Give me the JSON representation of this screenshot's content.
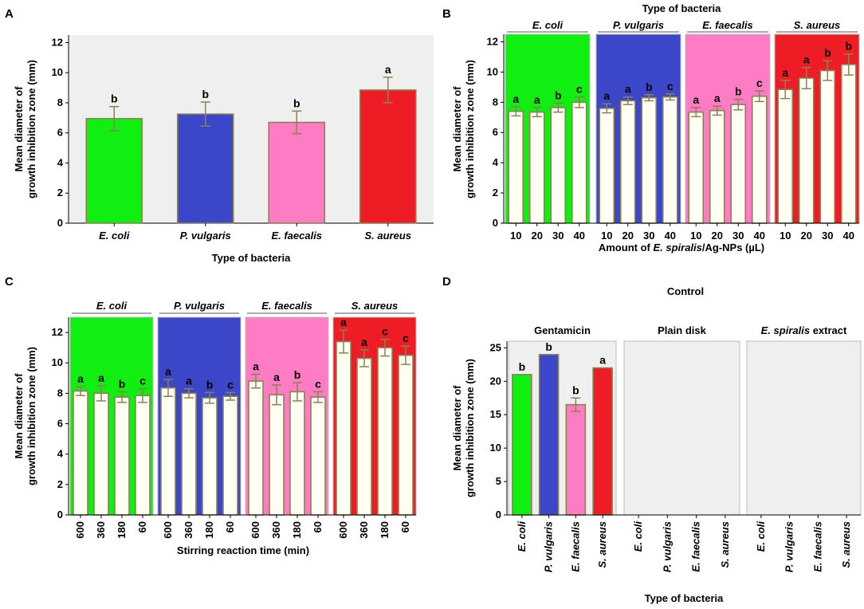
{
  "figure": {
    "colors": {
      "green": "#11ee11",
      "blue": "#3c46c8",
      "pink": "#fd7cc3",
      "red": "#ee1c25",
      "plot_bg": "#efefef",
      "bar_white": "#fffff4",
      "bar_edge": "#8b8152",
      "err": "#8b8152"
    }
  },
  "chart_data": [
    {
      "panel": "A",
      "type": "bar",
      "title": "",
      "xlabel": "Type of bacteria",
      "ylabel": [
        "Mean diameter of",
        "growth inhibition zone (mm)"
      ],
      "ylim": [
        0,
        12.5
      ],
      "yticks": [
        "0",
        "2",
        "4",
        "6",
        "8",
        "10",
        "12"
      ],
      "categories": [
        "E. coli",
        "P. vulgaris",
        "E. faecalis",
        "S. aureus"
      ],
      "values": [
        6.95,
        7.25,
        6.7,
        8.85
      ],
      "errors": [
        0.8,
        0.8,
        0.75,
        0.85
      ],
      "letters": [
        "b",
        "b",
        "b",
        "a"
      ],
      "bar_colors": [
        "green",
        "blue",
        "pink",
        "red"
      ]
    },
    {
      "panel": "B",
      "type": "bar",
      "title": "Type of bacteria",
      "xlabel_parts": [
        {
          "t": "Amount of ",
          "i": false
        },
        {
          "t": "E. spiralis",
          "i": true
        },
        {
          "t": "/Ag-NPs (µL)",
          "i": false
        }
      ],
      "ylabel": [
        "Mean diameter of",
        "growth inhibition zone (mm)"
      ],
      "ylim": [
        0,
        12.5
      ],
      "yticks": [
        "0",
        "2",
        "4",
        "6",
        "8",
        "10",
        "12"
      ],
      "facets": [
        {
          "name": "E. coli",
          "color": "green",
          "categories": [
            "10",
            "20",
            "30",
            "40"
          ],
          "values": [
            7.4,
            7.35,
            7.65,
            8.0
          ],
          "errors": [
            0.3,
            0.3,
            0.3,
            0.35
          ],
          "letters": [
            "a",
            "a",
            "b",
            "c"
          ]
        },
        {
          "name": "P. vulgaris",
          "color": "blue",
          "categories": [
            "10",
            "20",
            "30",
            "40"
          ],
          "values": [
            7.6,
            8.1,
            8.3,
            8.35
          ],
          "errors": [
            0.3,
            0.25,
            0.2,
            0.2
          ],
          "letters": [
            "a",
            "a",
            "b",
            "c"
          ]
        },
        {
          "name": "E. faecalis",
          "color": "pink",
          "categories": [
            "10",
            "20",
            "30",
            "40"
          ],
          "values": [
            7.35,
            7.45,
            7.85,
            8.4
          ],
          "errors": [
            0.3,
            0.3,
            0.35,
            0.35
          ],
          "letters": [
            "a",
            "a",
            "b",
            "c"
          ]
        },
        {
          "name": "S. aureus",
          "color": "red",
          "categories": [
            "10",
            "20",
            "30",
            "40"
          ],
          "values": [
            8.85,
            9.6,
            10.1,
            10.5
          ],
          "errors": [
            0.6,
            0.7,
            0.65,
            0.7
          ],
          "letters": [
            "a",
            "a",
            "b",
            "b"
          ]
        }
      ]
    },
    {
      "panel": "C",
      "type": "bar",
      "title": "",
      "xlabel": "Stirring reaction time (min)",
      "ylabel": [
        "Mean diameter of",
        "growth inhibition zone (mm)"
      ],
      "ylim": [
        0,
        13
      ],
      "yticks": [
        "0",
        "2",
        "4",
        "6",
        "8",
        "10",
        "12"
      ],
      "facets": [
        {
          "name": "E. coli",
          "color": "green",
          "categories": [
            "600",
            "360",
            "180",
            "60"
          ],
          "values": [
            8.15,
            8.0,
            7.75,
            7.85
          ],
          "errors": [
            0.3,
            0.5,
            0.35,
            0.45
          ],
          "letters": [
            "a",
            "a",
            "b",
            "c"
          ]
        },
        {
          "name": "P. vulgaris",
          "color": "blue",
          "categories": [
            "600",
            "360",
            "180",
            "60"
          ],
          "values": [
            8.35,
            8.0,
            7.7,
            7.8
          ],
          "errors": [
            0.55,
            0.3,
            0.35,
            0.25
          ],
          "letters": [
            "a",
            "a",
            "b",
            "c"
          ]
        },
        {
          "name": "E. faecalis",
          "color": "pink",
          "categories": [
            "600",
            "360",
            "180",
            "60"
          ],
          "values": [
            8.8,
            7.9,
            8.1,
            7.75
          ],
          "errors": [
            0.45,
            0.65,
            0.6,
            0.35
          ],
          "letters": [
            "a",
            "a",
            "b",
            "c"
          ]
        },
        {
          "name": "S. aureus",
          "color": "red",
          "categories": [
            "600",
            "360",
            "180",
            "60"
          ],
          "values": [
            11.4,
            10.3,
            11.0,
            10.5
          ],
          "errors": [
            0.75,
            0.55,
            0.55,
            0.6
          ],
          "letters": [
            "a",
            "a",
            "c",
            "c"
          ]
        }
      ]
    },
    {
      "panel": "D",
      "type": "bar",
      "title": "Control",
      "xlabel": "Type of bacteria",
      "ylabel": [
        "Mean diameter of",
        "growth inhibition zone (mm)"
      ],
      "ylim": [
        0,
        26
      ],
      "yticks": [
        "0",
        "5",
        "10",
        "15",
        "20",
        "25"
      ],
      "facets": [
        {
          "name_parts": [
            {
              "t": "Gentamicin",
              "i": false
            }
          ],
          "categories": [
            "E. coli",
            "P. vulgaris",
            "E. faecalis",
            "S. aureus"
          ],
          "values": [
            21.0,
            24.0,
            16.5,
            22.0
          ],
          "errors": [
            0,
            0,
            1.0,
            0
          ],
          "letters": [
            "b",
            "b",
            "b",
            "a"
          ],
          "bar_colors": [
            "green",
            "blue",
            "pink",
            "red"
          ]
        },
        {
          "name_parts": [
            {
              "t": "Plain disk",
              "i": false
            }
          ],
          "categories": [
            "E. coli",
            "P. vulgaris",
            "E. faecalis",
            "S. aureus"
          ],
          "values": [
            0,
            0,
            0,
            0
          ],
          "errors": [
            0,
            0,
            0,
            0
          ],
          "letters": [
            "",
            "",
            "",
            ""
          ],
          "bar_colors": [
            "green",
            "blue",
            "pink",
            "red"
          ]
        },
        {
          "name_parts": [
            {
              "t": "E. spiralis",
              "i": true
            },
            {
              "t": " extract",
              "i": false
            }
          ],
          "categories": [
            "E. coli",
            "P. vulgaris",
            "E. faecalis",
            "S. aureus"
          ],
          "values": [
            0,
            0,
            0,
            0
          ],
          "errors": [
            0,
            0,
            0,
            0
          ],
          "letters": [
            "",
            "",
            "",
            ""
          ],
          "bar_colors": [
            "green",
            "blue",
            "pink",
            "red"
          ]
        }
      ]
    }
  ],
  "labels": {
    "A": "A",
    "B": "B",
    "C": "C",
    "D": "D"
  }
}
